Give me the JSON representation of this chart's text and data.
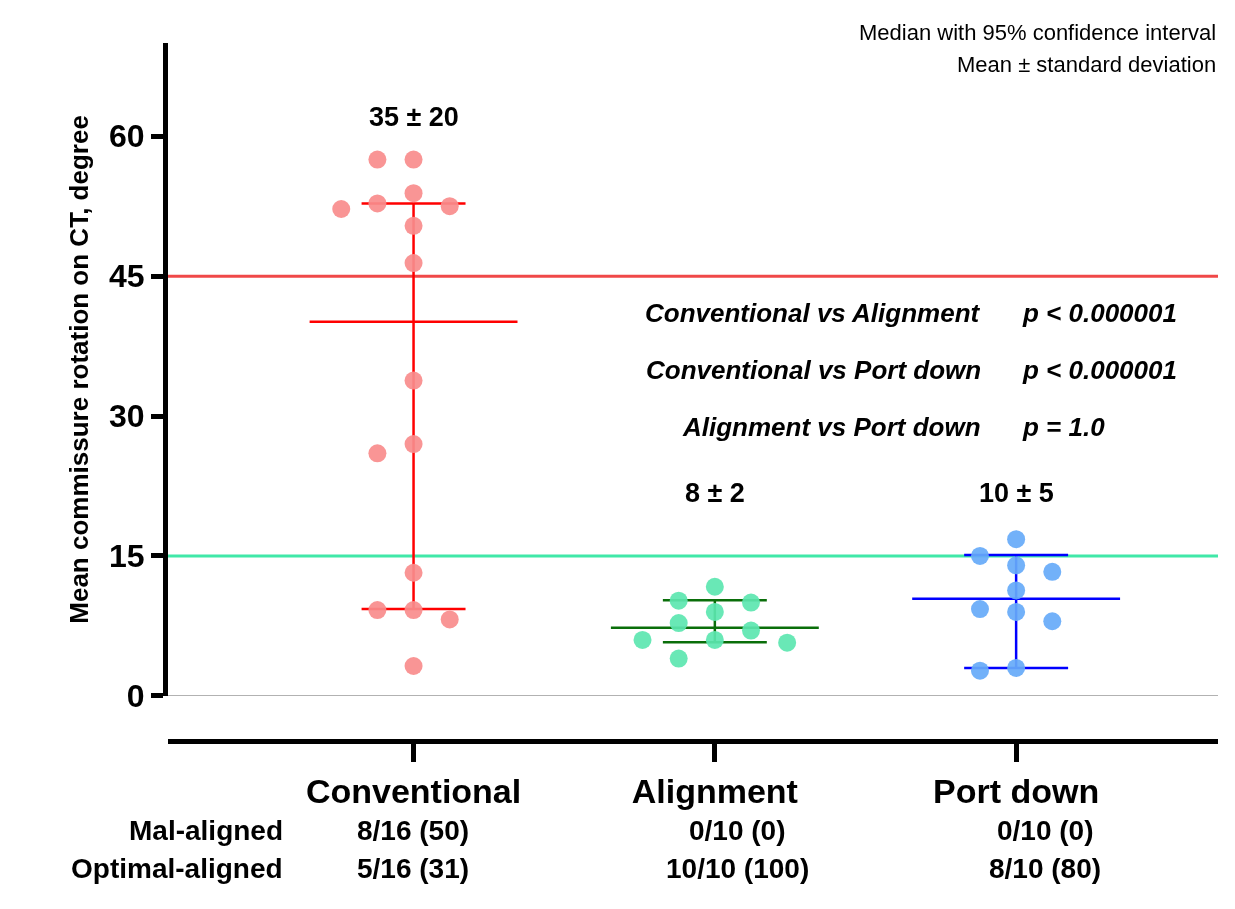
{
  "chart_data": {
    "type": "scatter",
    "ylabel": "Mean commissure rotation on CT, degree",
    "categories": [
      "Conventional",
      "Alignment",
      "Port down"
    ],
    "ylim": [
      0,
      70
    ],
    "yticks": [
      0,
      15,
      30,
      45,
      60
    ],
    "grid": false,
    "marker": "circle",
    "series": [
      {
        "color": "#f88c8c",
        "x": [
          "Conventional",
          "Conventional",
          "Conventional",
          "Conventional",
          "Conventional",
          "Conventional",
          "Conventional",
          "Conventional",
          "Conventional",
          "Conventional",
          "Conventional",
          "Conventional",
          "Conventional",
          "Conventional",
          "Conventional",
          "Conventional"
        ],
        "values": [
          57.5,
          57.5,
          53.9,
          52.2,
          52.5,
          52.8,
          50.4,
          46.4,
          33.8,
          27.0,
          26.0,
          13.2,
          9.2,
          9.2,
          8.2,
          3.2
        ]
      },
      {
        "color": "#5ce6b0",
        "x": [
          "Alignment",
          "Alignment",
          "Alignment",
          "Alignment",
          "Alignment",
          "Alignment",
          "Alignment",
          "Alignment",
          "Alignment",
          "Alignment"
        ],
        "values": [
          11.7,
          10.0,
          10.2,
          9.0,
          7.0,
          7.8,
          6.0,
          5.7,
          6.0,
          4.0
        ]
      },
      {
        "color": "#66aaf8",
        "x": [
          "Port down",
          "Port down",
          "Port down",
          "Port down",
          "Port down",
          "Port down",
          "Port down",
          "Port down",
          "Port down",
          "Port down"
        ],
        "values": [
          16.8,
          15.0,
          14.0,
          13.3,
          11.3,
          9.0,
          9.3,
          8.0,
          2.7,
          3.0
        ]
      },
      {
        "type": "box",
        "colors": [
          "#ff0000",
          "#0a6e0a",
          "#0000ff"
        ],
        "boxes": [
          {
            "low": 9.3,
            "q1": 40.1,
            "median": 40.1,
            "q3": 40.1,
            "high": 52.8
          },
          {
            "low": 5.75,
            "q1": 7.3,
            "median": 7.3,
            "q3": 7.3,
            "high": 10.25
          },
          {
            "low": 3.0,
            "q1": 10.4,
            "median": 10.4,
            "q3": 10.4,
            "high": 15.1
          }
        ]
      }
    ],
    "ref_lines": [
      {
        "axis": "y",
        "value": 45,
        "color": "#f04848"
      },
      {
        "axis": "y",
        "value": 15,
        "color": "#40e8a8"
      }
    ],
    "annotations": [
      "35 ± 20",
      "8 ± 2",
      "10 ± 5",
      "Median with 95% confidence interval",
      "Mean ± standard deviation",
      "Conventional vs Alignment",
      "p < 0.000001",
      "Conventional vs Port down",
      "p < 0.000001",
      "Alignment vs Port down",
      "p = 1.0",
      "Mal-aligned",
      "8/16 (50)",
      "0/10 (0)",
      "0/10 (0)",
      "Optimal-aligned",
      "5/16 (31)",
      "10/10 (100)",
      "8/10 (80)"
    ]
  }
}
